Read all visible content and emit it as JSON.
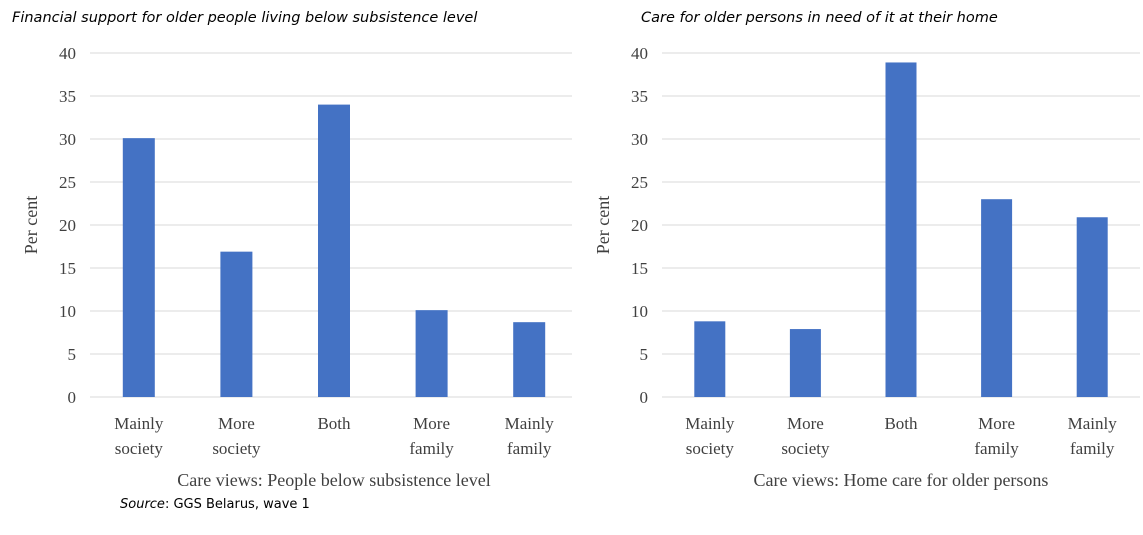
{
  "colors": {
    "bar": "#4472C4",
    "grid": "#d9d9d9",
    "text": "#404040"
  },
  "chart_data": [
    {
      "type": "bar",
      "title": "Financial support for older people living below subsistence level",
      "xlabel": "Care views: People below subsistence level",
      "ylabel": "Per cent",
      "categories": [
        [
          "Mainly",
          "society"
        ],
        [
          "More",
          "society"
        ],
        [
          "Both"
        ],
        [
          "More",
          "family"
        ],
        [
          "Mainly",
          "family"
        ]
      ],
      "values": [
        30.1,
        16.9,
        34,
        10.1,
        8.7
      ],
      "ylim": [
        0,
        40
      ],
      "yticks": [
        0,
        5,
        10,
        15,
        20,
        25,
        30,
        35,
        40
      ],
      "grid": true
    },
    {
      "type": "bar",
      "title": "Care for older persons in need of it at their home",
      "xlabel": "Care views: Home care for older persons",
      "ylabel": "Per cent",
      "categories": [
        [
          "Mainly",
          "society"
        ],
        [
          "More",
          "society"
        ],
        [
          "Both"
        ],
        [
          "More",
          "family"
        ],
        [
          "Mainly",
          "family"
        ]
      ],
      "values": [
        8.8,
        7.9,
        38.9,
        23,
        20.9
      ],
      "ylim": [
        0,
        40
      ],
      "yticks": [
        0,
        5,
        10,
        15,
        20,
        25,
        30,
        35,
        40
      ],
      "grid": true
    }
  ],
  "source": {
    "label": "Source",
    "text": ": GGS Belarus, wave 1"
  }
}
